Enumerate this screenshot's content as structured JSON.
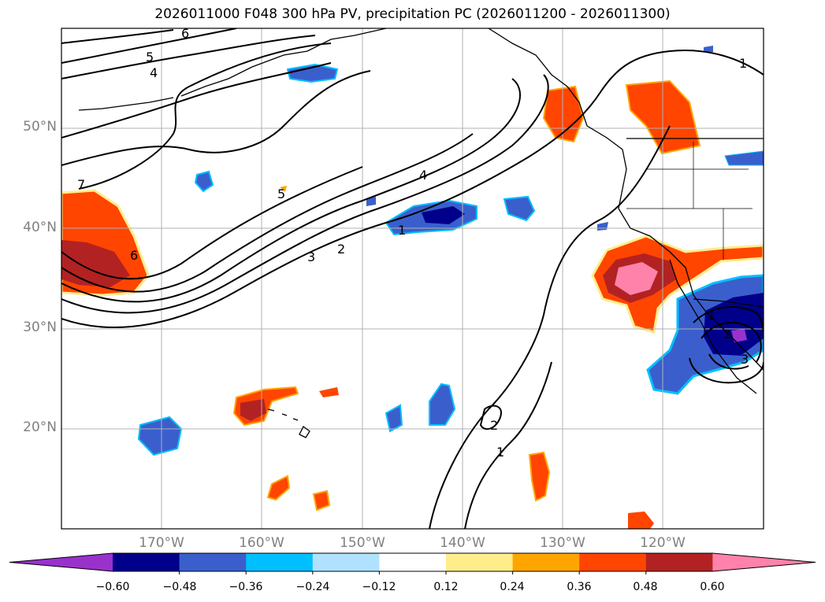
{
  "title": "2026011000 F048 300 hPa PV, precipitation PC (2026011200 - 2026011300)",
  "latitude_labels": [
    "50°N",
    "40°N",
    "30°N",
    "20°N"
  ],
  "longitude_labels": [
    "170°W",
    "160°W",
    "150°W",
    "140°W",
    "130°W",
    "120°W"
  ],
  "pv_contour_labels": [
    "6",
    "5",
    "4",
    "7",
    "6",
    "5",
    "4",
    "3",
    "2",
    "1",
    "1",
    "2",
    "1",
    "1",
    "2",
    "3"
  ],
  "colorbar": {
    "ticks": [
      "−0.60",
      "−0.48",
      "−0.36",
      "−0.24",
      "−0.12",
      "0.12",
      "0.24",
      "0.36",
      "0.48",
      "0.60"
    ],
    "colors": [
      "#9932cc",
      "#00008b",
      "#3a5fcd",
      "#00bfff",
      "#b0e2ff",
      "#ffffff",
      "#ffec8b",
      "#ffa500",
      "#ff4500",
      "#b22222",
      "#ff82ab"
    ]
  },
  "colors": {
    "land_outline": "#000000",
    "grid": "#b0b0b0"
  }
}
